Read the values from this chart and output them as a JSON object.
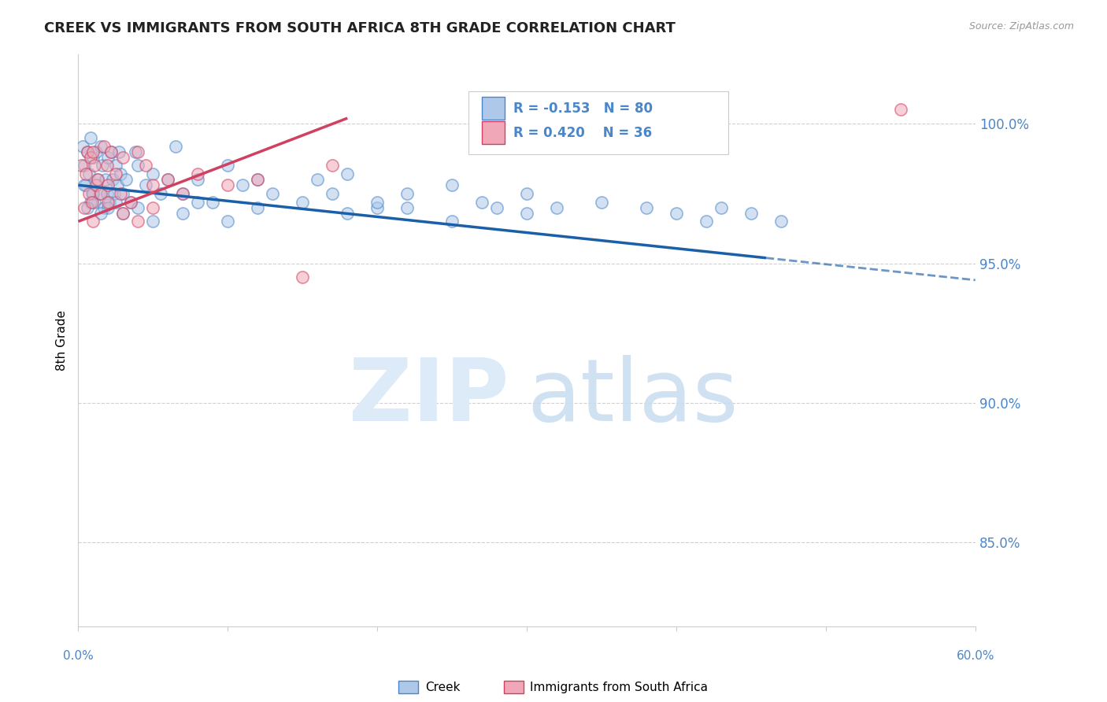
{
  "title": "CREEK VS IMMIGRANTS FROM SOUTH AFRICA 8TH GRADE CORRELATION CHART",
  "source": "Source: ZipAtlas.com",
  "ylabel": "8th Grade",
  "xlim": [
    0.0,
    60.0
  ],
  "ylim": [
    82.0,
    102.5
  ],
  "y_tick_positions": [
    85.0,
    90.0,
    95.0,
    100.0
  ],
  "y_tick_labels": [
    "85.0%",
    "90.0%",
    "95.0%",
    "100.0%"
  ],
  "creek_color": "#adc8e8",
  "creek_edge_color": "#4a86c8",
  "imm_color": "#f0a8b8",
  "imm_edge_color": "#d04060",
  "trend_creek_color": "#1a5fa8",
  "trend_imm_color": "#d04060",
  "watermark_zip_color": "#ddeaf8",
  "watermark_atlas_color": "#c8ddf0",
  "grid_color": "#d0d0d0",
  "right_axis_color": "#4a86c8",
  "legend_r_creek": "R = -0.153",
  "legend_n_creek": "N = 80",
  "legend_r_imm": "R = 0.420",
  "legend_n_imm": "N = 36",
  "creek_trend_x0": 0.0,
  "creek_trend_y0": 97.8,
  "creek_trend_x1": 60.0,
  "creek_trend_y1": 94.4,
  "creek_dash_x0": 46.0,
  "creek_dash_x1": 60.0,
  "imm_trend_x0": 0.0,
  "imm_trend_y0": 96.5,
  "imm_trend_x1": 18.0,
  "imm_trend_y1": 100.2,
  "dot_size": 120,
  "dot_alpha": 0.55,
  "dot_linewidth": 1.2,
  "creek_x": [
    0.3,
    0.4,
    0.5,
    0.6,
    0.7,
    0.8,
    0.9,
    1.0,
    1.1,
    1.2,
    1.3,
    1.4,
    1.5,
    1.6,
    1.7,
    1.8,
    1.9,
    2.0,
    2.1,
    2.2,
    2.3,
    2.4,
    2.5,
    2.6,
    2.7,
    2.8,
    3.0,
    3.2,
    3.5,
    3.8,
    4.0,
    4.5,
    5.0,
    5.5,
    6.0,
    6.5,
    7.0,
    8.0,
    9.0,
    10.0,
    11.0,
    12.0,
    13.0,
    15.0,
    16.0,
    17.0,
    18.0,
    20.0,
    22.0,
    25.0,
    27.0,
    30.0,
    32.0,
    35.0,
    38.0,
    40.0,
    42.0,
    43.0,
    45.0,
    47.0,
    18.0,
    20.0,
    22.0,
    25.0,
    28.0,
    30.0,
    10.0,
    12.0,
    7.0,
    8.0,
    5.0,
    4.0,
    3.0,
    2.5,
    2.0,
    1.5,
    1.0,
    0.8,
    0.6,
    0.4
  ],
  "creek_y": [
    99.2,
    98.5,
    97.8,
    99.0,
    98.2,
    99.5,
    97.5,
    98.8,
    97.2,
    99.0,
    98.0,
    97.5,
    99.2,
    98.5,
    97.0,
    98.0,
    97.5,
    98.8,
    97.2,
    99.0,
    98.0,
    97.5,
    98.5,
    97.8,
    99.0,
    98.2,
    97.5,
    98.0,
    97.2,
    99.0,
    98.5,
    97.8,
    98.2,
    97.5,
    98.0,
    99.2,
    97.5,
    98.0,
    97.2,
    98.5,
    97.8,
    98.0,
    97.5,
    97.2,
    98.0,
    97.5,
    98.2,
    97.0,
    97.5,
    97.8,
    97.2,
    97.5,
    97.0,
    97.2,
    97.0,
    96.8,
    96.5,
    97.0,
    96.8,
    96.5,
    96.8,
    97.2,
    97.0,
    96.5,
    97.0,
    96.8,
    96.5,
    97.0,
    96.8,
    97.2,
    96.5,
    97.0,
    96.8,
    97.2,
    97.0,
    96.8,
    97.5,
    97.2,
    97.0,
    97.8
  ],
  "imm_x": [
    0.2,
    0.4,
    0.5,
    0.6,
    0.7,
    0.8,
    0.9,
    1.0,
    1.1,
    1.2,
    1.3,
    1.5,
    1.7,
    1.9,
    2.0,
    2.2,
    2.5,
    2.8,
    3.0,
    3.5,
    4.0,
    4.5,
    5.0,
    6.0,
    7.0,
    8.0,
    10.0,
    12.0,
    15.0,
    17.0,
    4.0,
    5.0,
    3.0,
    2.0,
    1.0,
    55.0
  ],
  "imm_y": [
    98.5,
    97.0,
    98.2,
    99.0,
    97.5,
    98.8,
    97.2,
    99.0,
    98.5,
    97.8,
    98.0,
    97.5,
    99.2,
    98.5,
    97.8,
    99.0,
    98.2,
    97.5,
    98.8,
    97.2,
    99.0,
    98.5,
    97.8,
    98.0,
    97.5,
    98.2,
    97.8,
    98.0,
    94.5,
    98.5,
    96.5,
    97.0,
    96.8,
    97.2,
    96.5,
    100.5
  ]
}
